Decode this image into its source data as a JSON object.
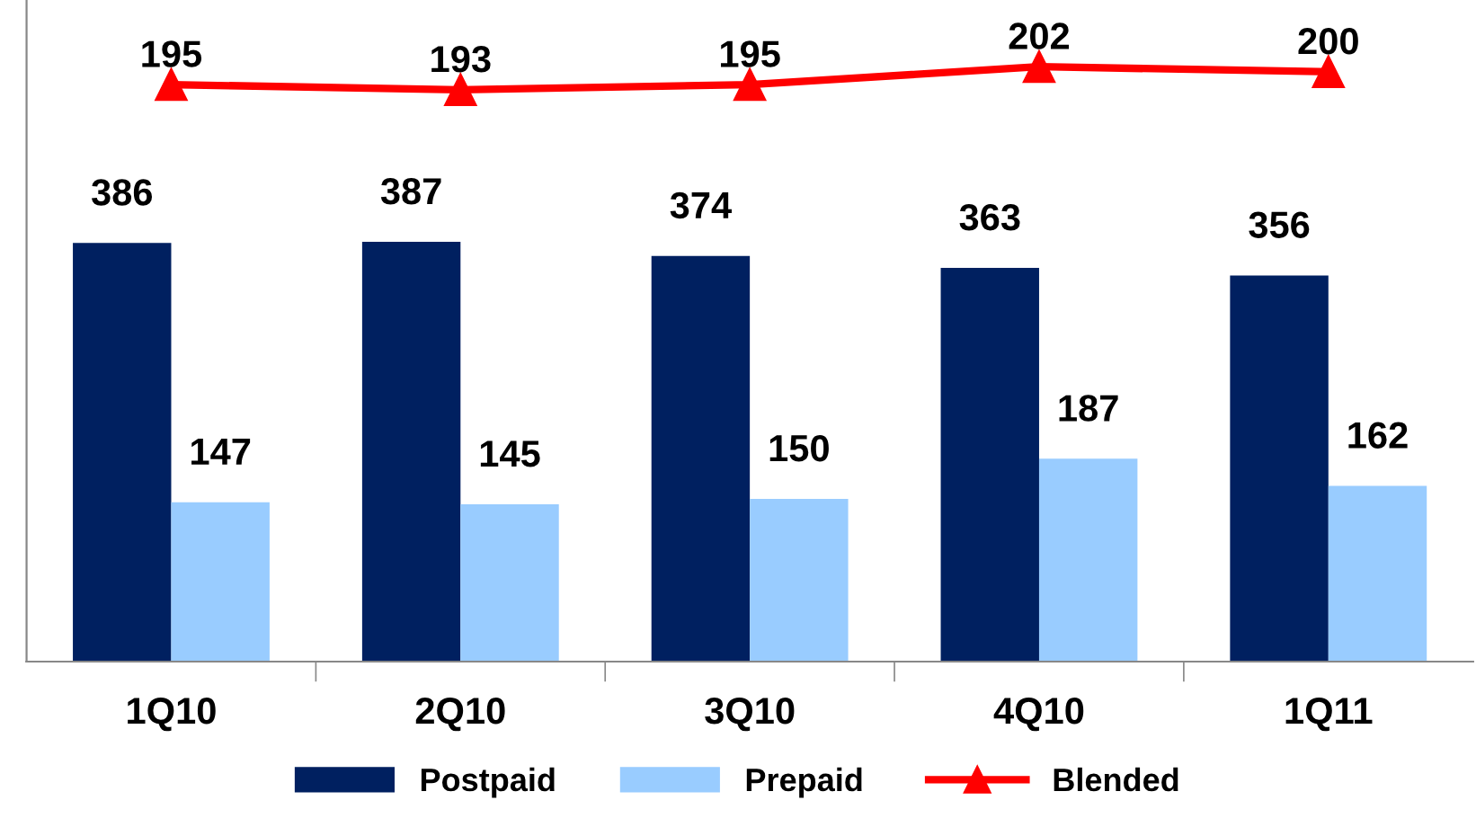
{
  "chart_data": {
    "type": "bar",
    "categories": [
      "1Q10",
      "2Q10",
      "3Q10",
      "4Q10",
      "1Q11"
    ],
    "series": [
      {
        "name": "Postpaid",
        "color": "#002060",
        "values": [
          386,
          387,
          374,
          363,
          356
        ]
      },
      {
        "name": "Prepaid",
        "color": "#99ccff",
        "values": [
          147,
          145,
          150,
          187,
          162
        ]
      },
      {
        "name": "Blended",
        "type": "line",
        "axis": "y2",
        "color": "#ff0000",
        "values": [
          195,
          193,
          195,
          202,
          200
        ]
      }
    ],
    "ylim": [
      0,
      610
    ],
    "y2lim": [
      -30,
      228
    ],
    "tick_labels": "x",
    "data_labels": true,
    "marker": "triangle",
    "line_style": "solid",
    "legend": "bottom",
    "grid": false
  }
}
